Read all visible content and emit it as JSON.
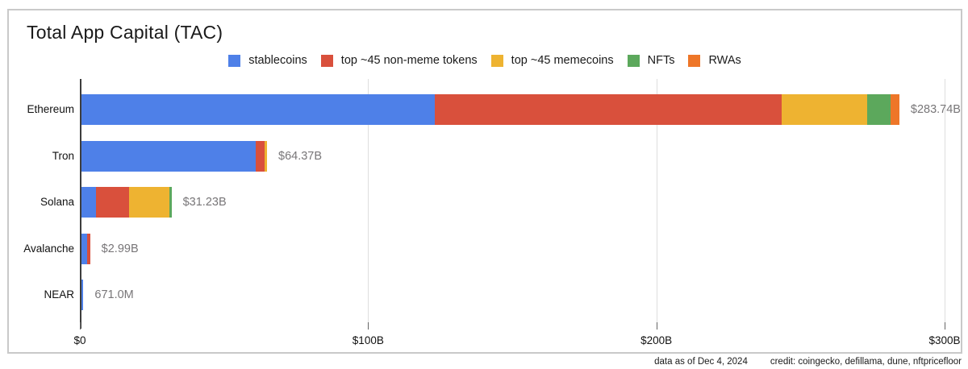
{
  "title": "Total App Capital (TAC)",
  "legend": [
    {
      "name": "stablecoins",
      "label": "stablecoins",
      "color": "#4E80E8"
    },
    {
      "name": "non-meme-tokens",
      "label": "top ~45 non-meme tokens",
      "color": "#D9503C"
    },
    {
      "name": "memecoins",
      "label": "top ~45 memecoins",
      "color": "#EEB331"
    },
    {
      "name": "nfts",
      "label": "NFTs",
      "color": "#5CA85C"
    },
    {
      "name": "rwas",
      "label": "RWAs",
      "color": "#EE7628"
    }
  ],
  "chart_data": {
    "type": "bar",
    "orientation": "horizontal",
    "stacked": true,
    "title": "Total App Capital (TAC)",
    "categories": [
      "Ethereum",
      "Tron",
      "Solana",
      "Avalanche",
      "NEAR"
    ],
    "series": [
      {
        "name": "stablecoins",
        "color": "#4E80E8",
        "values": [
          122.6,
          60.5,
          5.0,
          1.9,
          0.671
        ]
      },
      {
        "name": "top ~45 non-meme tokens",
        "color": "#D9503C",
        "values": [
          120.2,
          3.1,
          11.6,
          1.09,
          0
        ]
      },
      {
        "name": "top ~45 memecoins",
        "color": "#EEB331",
        "values": [
          29.7,
          0.77,
          13.8,
          0,
          0
        ]
      },
      {
        "name": "NFTs",
        "color": "#5CA85C",
        "values": [
          8.1,
          0,
          0.83,
          0,
          0
        ]
      },
      {
        "name": "RWAs",
        "color": "#EE7628",
        "values": [
          3.14,
          0,
          0,
          0,
          0
        ]
      }
    ],
    "totals": [
      283.74,
      64.37,
      31.23,
      2.99,
      0.671
    ],
    "total_labels": [
      "$283.74B",
      "$64.37B",
      "$31.23B",
      "$2.99B",
      "671.0M"
    ],
    "x_ticks": [
      {
        "value": 0,
        "label": "$0"
      },
      {
        "value": 100,
        "label": "$100B"
      },
      {
        "value": 200,
        "label": "$200B"
      },
      {
        "value": 300,
        "label": "$300B"
      }
    ],
    "xlim": [
      0,
      300
    ],
    "x_unit": "USD billions",
    "grid": "vertical-only",
    "legend_position": "top-center",
    "value_label_color": "#787678"
  },
  "footer": {
    "data_as_of": "data as of Dec 4, 2024",
    "credit": "credit: coingecko, defillama, dune, nftpricefloor"
  }
}
